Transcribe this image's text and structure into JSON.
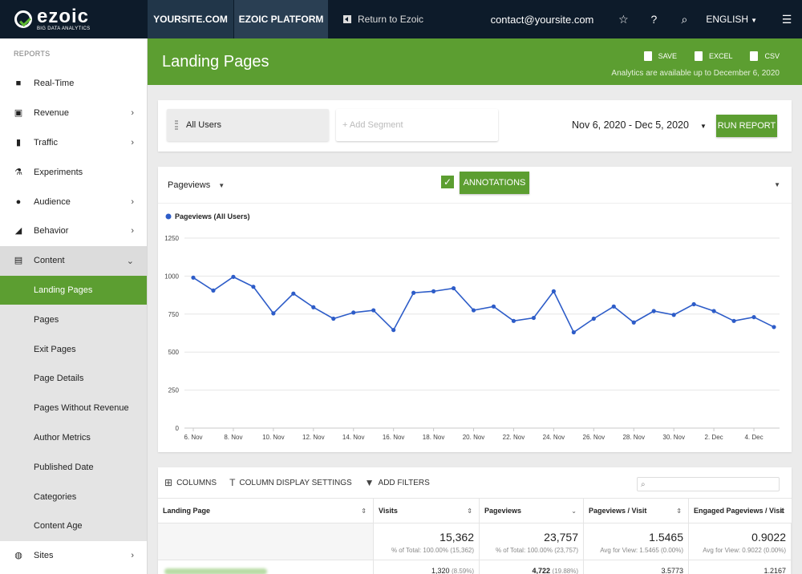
{
  "logo": {
    "name": "ezoic",
    "tagline": "BIG DATA ANALYTICS"
  },
  "topbar": {
    "tabs": [
      "YOURSITE.COM",
      "EZOIC PLATFORM"
    ],
    "return_label": "Return to Ezoic",
    "email": "contact@yoursite.com",
    "language": "ENGLISH"
  },
  "sidebar": {
    "header": "REPORTS",
    "items": [
      {
        "label": "Real-Time",
        "icon": "video-camera-icon",
        "chevron": ""
      },
      {
        "label": "Revenue",
        "icon": "money-icon",
        "chevron": "›"
      },
      {
        "label": "Traffic",
        "icon": "traffic-light-icon",
        "chevron": "›"
      },
      {
        "label": "Experiments",
        "icon": "flask-icon",
        "chevron": ""
      },
      {
        "label": "Audience",
        "icon": "people-icon",
        "chevron": "›"
      },
      {
        "label": "Behavior",
        "icon": "trend-icon",
        "chevron": "›"
      },
      {
        "label": "Content",
        "icon": "document-icon",
        "chevron": "⌄"
      }
    ],
    "content_subitems": [
      "Landing Pages",
      "Pages",
      "Exit Pages",
      "Page Details",
      "Pages Without Revenue",
      "Author Metrics",
      "Published Date",
      "Categories",
      "Content Age"
    ],
    "after_items": [
      {
        "label": "Sites",
        "icon": "globe-icon",
        "chevron": "›"
      }
    ]
  },
  "header": {
    "title": "Landing Pages",
    "save": "SAVE",
    "excel": "EXCEL",
    "csv": "CSV",
    "availability": "Analytics are available up to December 6, 2020"
  },
  "segments": {
    "all_users": "All Users",
    "add_segment": "+ Add Segment",
    "date_range": "Nov 6, 2020 - Dec 5, 2020",
    "run_report": "RUN REPORT"
  },
  "chart_controls": {
    "metric": "Pageviews",
    "annotations": "ANNOTATIONS"
  },
  "chart_data": {
    "type": "line",
    "legend": "Pageviews (All Users)",
    "series_color": "#2d5cc8",
    "ylim": [
      0,
      1250
    ],
    "yticks": [
      0,
      250,
      500,
      750,
      1000,
      1250
    ],
    "x_tick_labels": [
      "6. Nov",
      "8. Nov",
      "10. Nov",
      "12. Nov",
      "14. Nov",
      "16. Nov",
      "18. Nov",
      "20. Nov",
      "22. Nov",
      "24. Nov",
      "26. Nov",
      "28. Nov",
      "30. Nov",
      "2. Dec",
      "4. Dec"
    ],
    "series": [
      {
        "name": "Pageviews (All Users)",
        "values": [
          990,
          905,
          995,
          930,
          755,
          885,
          795,
          720,
          760,
          775,
          645,
          890,
          900,
          920,
          775,
          800,
          705,
          725,
          900,
          630,
          720,
          800,
          695,
          770,
          745,
          815,
          770,
          705,
          730,
          665
        ]
      }
    ]
  },
  "table": {
    "toolbar": {
      "columns": "COLUMNS",
      "display_settings": "COLUMN DISPLAY SETTINGS",
      "filters": "ADD FILTERS"
    },
    "headers": [
      "Landing Page",
      "Visits",
      "Pageviews",
      "Pageviews / Visit",
      "Engaged Pageviews / Visit"
    ],
    "totals": [
      {
        "value": "15,362",
        "note": "% of Total: 100.00% (15,362)"
      },
      {
        "value": "23,757",
        "note": "% of Total: 100.00% (23,757)"
      },
      {
        "value": "1.5465",
        "note": "Avg for View: 1.5465 (0.00%)"
      },
      {
        "value": "0.9022",
        "note": "Avg for View: 0.9022 (0.00%)"
      }
    ],
    "first_row": [
      {
        "value": "1,320",
        "pct": "(8.59%)"
      },
      {
        "value": "4,722",
        "pct": "(19.88%)"
      },
      {
        "value": "3.5773",
        "pct": ""
      },
      {
        "value": "1.2167",
        "pct": ""
      }
    ]
  }
}
